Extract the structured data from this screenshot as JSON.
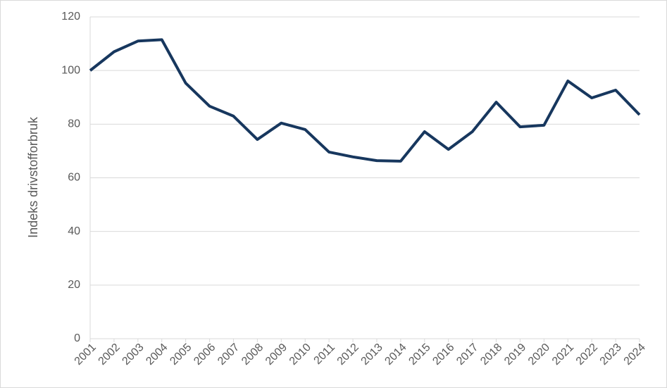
{
  "chart_data": {
    "type": "line",
    "y_label": "Indeks drivstofforbruk",
    "x": [
      2001,
      2002,
      2003,
      2004,
      2005,
      2006,
      2007,
      2008,
      2009,
      2010,
      2011,
      2012,
      2013,
      2014,
      2015,
      2016,
      2017,
      2018,
      2019,
      2020,
      2021,
      2022,
      2023,
      2024
    ],
    "series": [
      {
        "color": "#17375e",
        "values": [
          100,
          107,
          111,
          111.5,
          95.3,
          86.7,
          83,
          74.3,
          80.4,
          78,
          69.6,
          67.8,
          66.4,
          66.2,
          77.2,
          70.6,
          77.2,
          88.2,
          79,
          79.6,
          96.1,
          89.8,
          92.7,
          83.5
        ]
      }
    ],
    "xlim": [
      2001,
      2024
    ],
    "xticks": [
      2001,
      2002,
      2003,
      2004,
      2005,
      2006,
      2007,
      2008,
      2009,
      2010,
      2011,
      2012,
      2013,
      2014,
      2015,
      2016,
      2017,
      2018,
      2019,
      2020,
      2021,
      2022,
      2023,
      2024
    ],
    "ylim": [
      0,
      120
    ],
    "yticks": [
      0,
      20,
      40,
      60,
      80,
      100,
      120
    ],
    "grid": true
  }
}
